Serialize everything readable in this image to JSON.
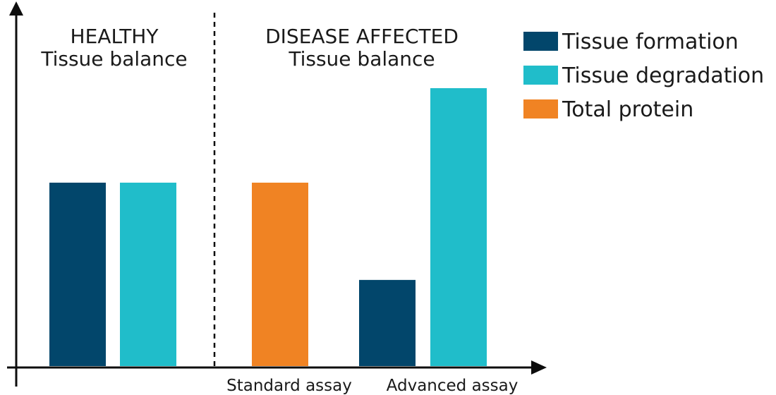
{
  "chart_data": {
    "type": "bar",
    "title": "",
    "xlabel": "",
    "ylabel": "",
    "ylim": [
      0,
      10
    ],
    "grid": false,
    "legend_position": "top-right",
    "panels": [
      {
        "line1": "HEALTHY",
        "line2": "Tissue balance"
      },
      {
        "line1": "DISEASE AFFECTED",
        "line2": "Tissue balance"
      }
    ],
    "x_tick_labels": [
      "Standard assay",
      "Advanced assay"
    ],
    "series": [
      {
        "name": "Tissue formation",
        "color": "#02466b"
      },
      {
        "name": "Tissue degradation",
        "color": "#20bdca"
      },
      {
        "name": "Total protein",
        "color": "#f08323"
      }
    ],
    "bars": [
      {
        "group": "HEALTHY",
        "series": "Tissue formation",
        "value": 6.6
      },
      {
        "group": "HEALTHY",
        "series": "Tissue degradation",
        "value": 6.6
      },
      {
        "group": "Standard assay",
        "series": "Total protein",
        "value": 6.6
      },
      {
        "group": "Advanced assay",
        "series": "Tissue formation",
        "value": 3.1
      },
      {
        "group": "Advanced assay",
        "series": "Tissue degradation",
        "value": 10
      }
    ]
  }
}
